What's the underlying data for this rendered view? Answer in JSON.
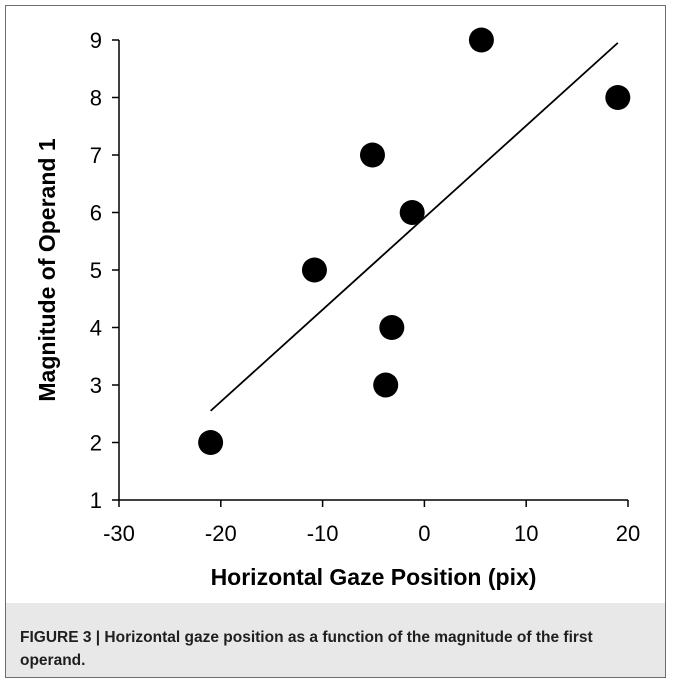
{
  "chart_data": {
    "type": "scatter",
    "xlabel": "Horizontal Gaze Position (pix)",
    "ylabel": "Magnitude of Operand 1",
    "xlim": [
      -30,
      20
    ],
    "ylim": [
      1,
      9
    ],
    "xticks": [
      -30,
      -20,
      -10,
      0,
      10,
      20
    ],
    "yticks": [
      1,
      2,
      3,
      4,
      5,
      6,
      7,
      8,
      9
    ],
    "points": [
      {
        "x": -21.0,
        "y": 2
      },
      {
        "x": -3.8,
        "y": 3
      },
      {
        "x": -3.2,
        "y": 4
      },
      {
        "x": -10.8,
        "y": 5
      },
      {
        "x": -1.2,
        "y": 6
      },
      {
        "x": -5.1,
        "y": 7
      },
      {
        "x": 5.6,
        "y": 9
      },
      {
        "x": 19.0,
        "y": 8
      }
    ],
    "trendline": {
      "x": [
        -21.0,
        19.0
      ],
      "y": [
        2.55,
        8.95
      ]
    },
    "marker_color": "#000000",
    "grid": false
  },
  "caption": "FIGURE 3 | Horizontal gaze position as a function of the magnitude of the first operand."
}
